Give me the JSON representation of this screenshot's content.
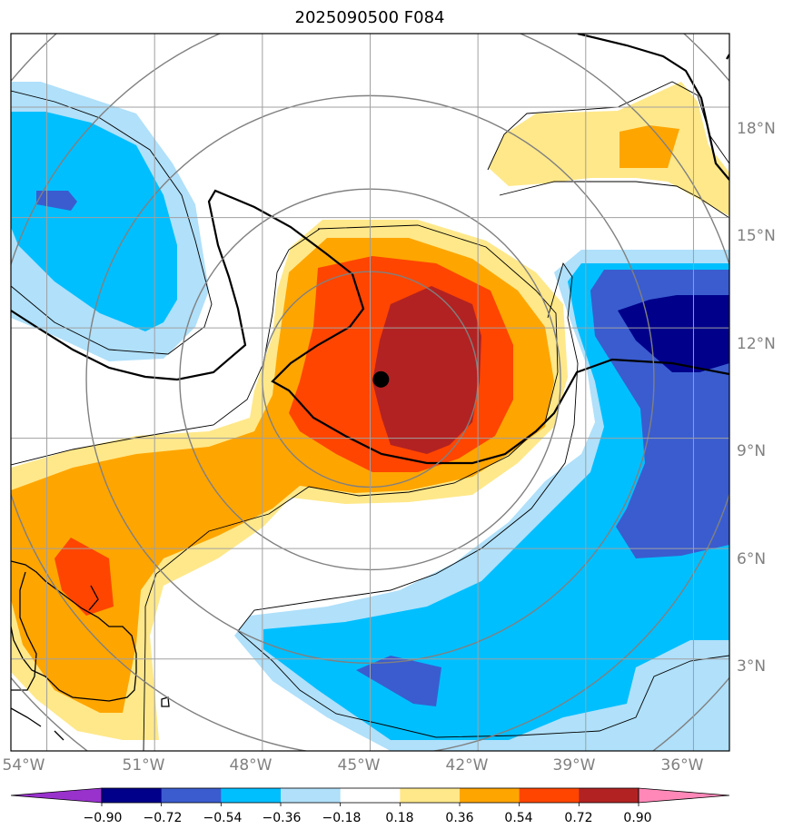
{
  "title": "2025090500 F084",
  "map": {
    "lon_range": [
      -55,
      -35
    ],
    "lat_range": [
      0.5,
      20
    ],
    "storm_center": {
      "lon": -44.7,
      "lat": 10.6
    },
    "range_rings_center": {
      "lon": -45,
      "lat": 10.6
    },
    "range_ring_radii_deg": [
      3.0,
      5.3,
      7.9,
      10.5,
      13.0
    ],
    "lon_ticks": [
      {
        "value": -54,
        "label": "54°W"
      },
      {
        "value": -51,
        "label": "51°W"
      },
      {
        "value": -48,
        "label": "48°W"
      },
      {
        "value": -45,
        "label": "45°W"
      },
      {
        "value": -42,
        "label": "42°W"
      },
      {
        "value": -39,
        "label": "39°W"
      },
      {
        "value": -36,
        "label": "36°W"
      }
    ],
    "lat_ticks": [
      {
        "value": 18,
        "label": "18°N"
      },
      {
        "value": 15,
        "label": "15°N"
      },
      {
        "value": 12,
        "label": "12°N"
      },
      {
        "value": 9,
        "label": "9°N"
      },
      {
        "value": 6,
        "label": "6°N"
      },
      {
        "value": 3,
        "label": "3°N"
      }
    ],
    "colors": {
      "grid": "#a0a0a0",
      "ring": "#808080",
      "frame": "#000000"
    }
  },
  "colorbar": {
    "levels": [
      "−0.90",
      "−0.72",
      "−0.54",
      "−0.36",
      "−0.18",
      "0.18",
      "0.36",
      "0.54",
      "0.72",
      "0.90"
    ],
    "colors": [
      "#9932cc",
      "#00008b",
      "#3a5ccf",
      "#00bfff",
      "#b0e0fa",
      "#ffffff",
      "#ffe88a",
      "#ffa500",
      "#ff4500",
      "#b22222",
      "#ff88b8"
    ]
  }
}
